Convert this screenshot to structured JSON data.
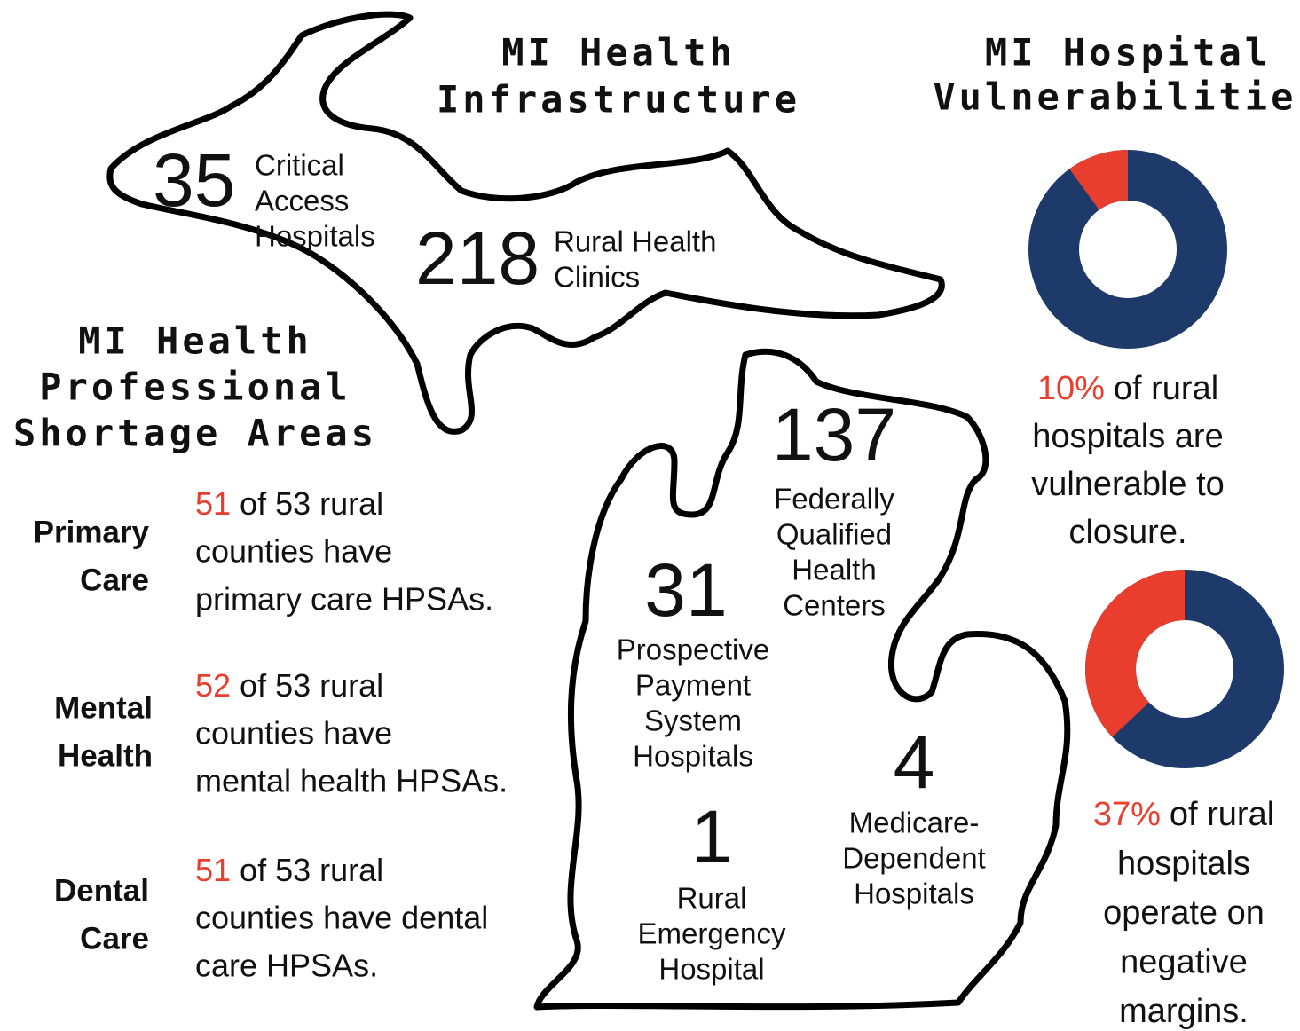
{
  "infrastructure": {
    "title_lines": [
      "MI Health",
      "Infrastructure"
    ],
    "stats": [
      {
        "number": "35",
        "label_lines": [
          "Critical",
          "Access",
          "Hospitals"
        ]
      },
      {
        "number": "218",
        "label_lines": [
          "Rural Health",
          "Clinics"
        ]
      },
      {
        "number": "137",
        "label_lines": [
          "Federally",
          "Qualified",
          "Health",
          "Centers"
        ]
      },
      {
        "number": "31",
        "label_lines": [
          "Prospective",
          "Payment",
          "System",
          "Hospitals"
        ]
      },
      {
        "number": "4",
        "label_lines": [
          "Medicare-",
          "Dependent",
          "Hospitals"
        ]
      },
      {
        "number": "1",
        "label_lines": [
          "Rural",
          "Emergency",
          "Hospital"
        ]
      }
    ]
  },
  "shortage": {
    "title_lines": [
      "MI Health",
      "Professional",
      "Shortage Areas"
    ],
    "rows": [
      {
        "category_lines": [
          "Primary",
          "Care"
        ],
        "count": "51",
        "text_lines": [
          "of 53 rural",
          "counties have",
          "primary care HPSAs."
        ]
      },
      {
        "category_lines": [
          "Mental",
          "Health"
        ],
        "count": "52",
        "text_lines": [
          "of 53 rural",
          "counties have",
          "mental health HPSAs."
        ]
      },
      {
        "category_lines": [
          "Dental",
          "Care"
        ],
        "count": "51",
        "text_lines": [
          "of 53 rural",
          "counties have dental",
          "care HPSAs."
        ]
      }
    ]
  },
  "vulnerabilities": {
    "title_lines": [
      "MI Hospital",
      "Vulnerabilities"
    ],
    "charts": [
      {
        "type": "pie",
        "value": 10,
        "value_label": "10%",
        "color": "#e93e2d",
        "rest_color": "#1d3a6b",
        "text_lines": [
          "of rural",
          "hospitals are",
          "vulnerable to",
          "closure."
        ]
      },
      {
        "type": "pie",
        "value": 37,
        "value_label": "37%",
        "color": "#e93e2d",
        "rest_color": "#1d3a6b",
        "text_lines": [
          "of rural",
          "hospitals",
          "operate on",
          "negative",
          "margins."
        ]
      }
    ]
  }
}
